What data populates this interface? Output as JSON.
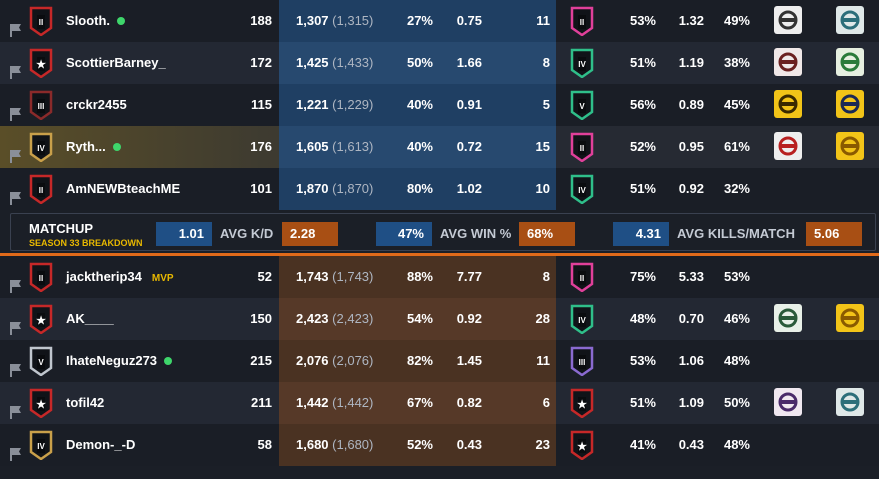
{
  "colors": {
    "blue_team": "#1f4f85",
    "orange_team": "#a84f14",
    "online": "#3ed66b",
    "mvp": "#e8b800"
  },
  "blue_team": [
    {
      "name": "Slooth.",
      "online": true,
      "rank": "II",
      "level": "188",
      "mmr": "1,307",
      "peak": "(1,315)",
      "win": "27%",
      "kd": "0.75",
      "kills": "11",
      "season_rank": "II",
      "season_win": "53%",
      "season_kd": "1.32",
      "season_hs": "49%",
      "ops": [
        "op-face-icon",
        "op-helmet-icon"
      ]
    },
    {
      "name": "ScottierBarney_",
      "online": false,
      "rank": "star",
      "level": "172",
      "mmr": "1,425",
      "peak": "(1,433)",
      "win": "50%",
      "kd": "1.66",
      "kills": "8",
      "season_rank": "IV",
      "season_win": "51%",
      "season_kd": "1.19",
      "season_hs": "38%",
      "ops": [
        "op-mask-icon",
        "op-green-icon"
      ]
    },
    {
      "name": "crckr2455",
      "online": false,
      "rank": "III",
      "level": "115",
      "mmr": "1,221",
      "peak": "(1,229)",
      "win": "40%",
      "kd": "0.91",
      "kills": "5",
      "season_rank": "V",
      "season_win": "56%",
      "season_kd": "0.89",
      "season_hs": "45%",
      "ops": [
        "op-goggles-icon",
        "op-bolt-icon"
      ]
    },
    {
      "name": "Ryth...",
      "online": true,
      "rank": "IV",
      "level": "176",
      "mmr": "1,605",
      "peak": "(1,613)",
      "win": "40%",
      "kd": "0.72",
      "kills": "15",
      "season_rank": "II",
      "season_win": "52%",
      "season_kd": "0.95",
      "season_hs": "61%",
      "ops": [
        "op-red-icon",
        "op-web-icon"
      ]
    },
    {
      "name": "AmNEWBteachME",
      "online": false,
      "rank": "II",
      "level": "101",
      "mmr": "1,870",
      "peak": "(1,870)",
      "win": "80%",
      "kd": "1.02",
      "kills": "10",
      "season_rank": "IV",
      "season_win": "51%",
      "season_kd": "0.92",
      "season_hs": "32%",
      "ops": []
    }
  ],
  "matchup": {
    "title": "MATCHUP",
    "subtitle": "SEASON 33 BREAKDOWN",
    "avg_kd_label": "AVG K/D",
    "avg_kd_blue": "1.01",
    "avg_kd_orange": "2.28",
    "avg_win_label": "AVG WIN %",
    "avg_win_blue": "47%",
    "avg_win_orange": "68%",
    "avg_kills_label": "AVG KILLS/MATCH",
    "avg_kills_blue": "4.31",
    "avg_kills_orange": "5.06"
  },
  "orange_team": [
    {
      "name": "jacktherip34",
      "online": false,
      "mvp": "MVP",
      "rank": "II",
      "level": "52",
      "mmr": "1,743",
      "peak": "(1,743)",
      "win": "88%",
      "kd": "7.77",
      "kills": "8",
      "season_rank": "II",
      "season_win": "75%",
      "season_kd": "5.33",
      "season_hs": "53%",
      "ops": []
    },
    {
      "name": "AK____",
      "online": false,
      "rank": "star",
      "level": "150",
      "mmr": "2,423",
      "peak": "(2,423)",
      "win": "54%",
      "kd": "0.92",
      "kills": "28",
      "season_rank": "IV",
      "season_win": "48%",
      "season_kd": "0.70",
      "season_hs": "46%",
      "ops": [
        "op-wings-icon",
        "op-web-icon"
      ]
    },
    {
      "name": "IhateNeguz273",
      "online": true,
      "rank": "V",
      "level": "215",
      "mmr": "2,076",
      "peak": "(2,076)",
      "win": "82%",
      "kd": "1.45",
      "kills": "11",
      "season_rank": "III",
      "season_win": "53%",
      "season_kd": "1.06",
      "season_hs": "48%",
      "ops": []
    },
    {
      "name": "tofil42",
      "online": false,
      "rank": "star",
      "level": "211",
      "mmr": "1,442",
      "peak": "(1,442)",
      "win": "67%",
      "kd": "0.82",
      "kills": "6",
      "season_rank": "star",
      "season_win": "51%",
      "season_kd": "1.09",
      "season_hs": "50%",
      "ops": [
        "op-hair-icon",
        "op-helmet-icon"
      ]
    },
    {
      "name": "Demon-_-D",
      "online": false,
      "rank": "IV",
      "level": "58",
      "mmr": "1,680",
      "peak": "(1,680)",
      "win": "52%",
      "kd": "0.43",
      "kills": "23",
      "season_rank": "star",
      "season_win": "41%",
      "season_kd": "0.43",
      "season_hs": "48%",
      "ops": []
    }
  ]
}
